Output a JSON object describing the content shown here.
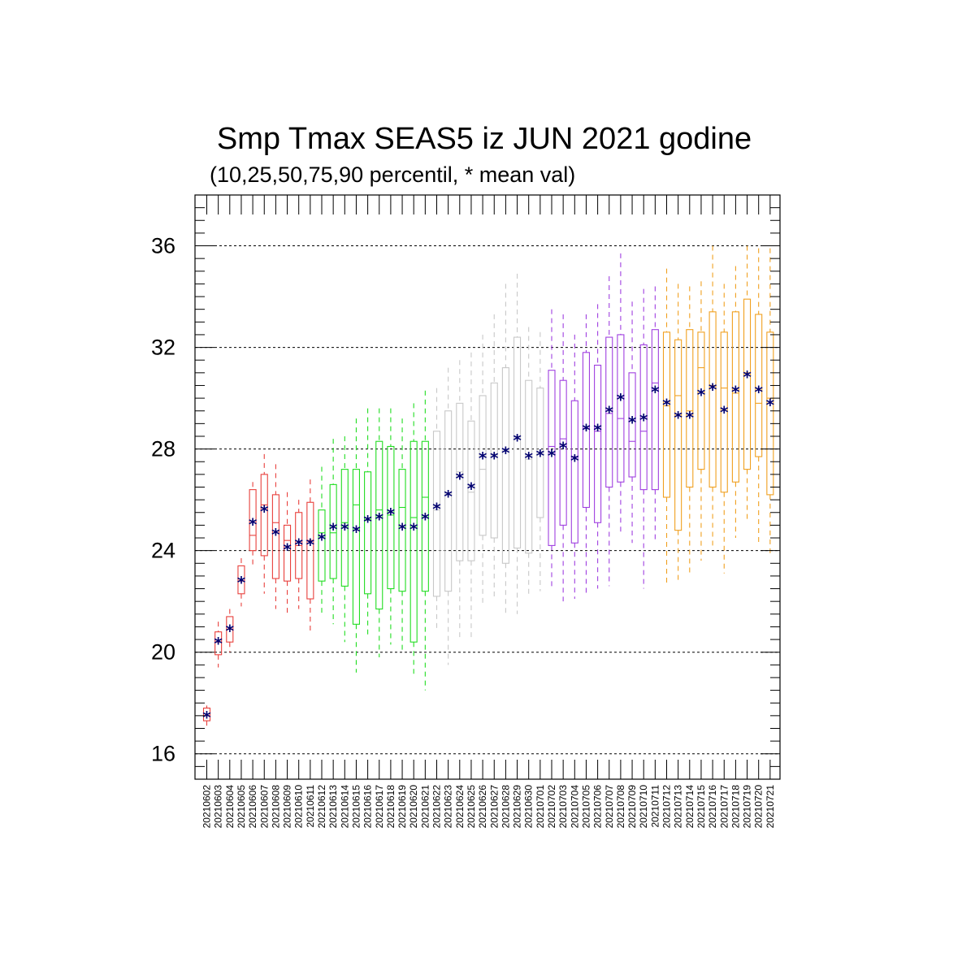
{
  "chart_data": {
    "type": "box",
    "title": "Smp Tmax SEAS5 iz JUN 2021 godine",
    "subtitle": "(10,25,50,75,90 percentil, * mean val)",
    "xlabel": "",
    "ylabel": "",
    "ylim": [
      15,
      38
    ],
    "yticks": [
      16,
      20,
      24,
      28,
      32,
      36
    ],
    "grid": "horizontal dashed at major ticks",
    "colors": {
      "june_early": "#e8403c",
      "june_mid": "#22dd22",
      "june_late": "#c8c8c8",
      "july_early": "#a040e0",
      "july_late": "#f0a020",
      "mean_marker": "#000070"
    },
    "categories": [
      "20210602",
      "20210603",
      "20210604",
      "20210605",
      "20210606",
      "20210607",
      "20210608",
      "20210609",
      "20210610",
      "20210611",
      "20210612",
      "20210613",
      "20210614",
      "20210615",
      "20210616",
      "20210617",
      "20210618",
      "20210619",
      "20210620",
      "20210621",
      "20210622",
      "20210623",
      "20210624",
      "20210625",
      "20210626",
      "20210627",
      "20210628",
      "20210629",
      "20210630",
      "20210701",
      "20210702",
      "20210703",
      "20210704",
      "20210705",
      "20210706",
      "20210707",
      "20210708",
      "20210709",
      "20210710",
      "20210711",
      "20210712",
      "20210713",
      "20210714",
      "20210715",
      "20210716",
      "20210717",
      "20210718",
      "20210719",
      "20210720",
      "20210721"
    ],
    "boxes": [
      {
        "p10": 17.1,
        "p25": 17.3,
        "p50": 17.5,
        "p75": 17.8,
        "p90": 17.9,
        "mean": 17.5,
        "color": "#e8403c"
      },
      {
        "p10": 19.4,
        "p25": 19.9,
        "p50": 20.4,
        "p75": 20.8,
        "p90": 21.2,
        "mean": 20.4,
        "color": "#e8403c"
      },
      {
        "p10": 20.0,
        "p25": 20.4,
        "p50": 20.9,
        "p75": 21.4,
        "p90": 21.7,
        "mean": 20.9,
        "color": "#e8403c"
      },
      {
        "p10": 21.8,
        "p25": 22.3,
        "p50": 22.8,
        "p75": 23.4,
        "p90": 23.7,
        "mean": 22.8,
        "color": "#e8403c"
      },
      {
        "p10": 23.3,
        "p25": 24.0,
        "p50": 24.6,
        "p75": 26.4,
        "p90": 26.7,
        "mean": 25.1,
        "color": "#e8403c"
      },
      {
        "p10": 22.3,
        "p25": 23.8,
        "p50": 25.8,
        "p75": 27.0,
        "p90": 27.8,
        "mean": 25.6,
        "color": "#e8403c"
      },
      {
        "p10": 21.7,
        "p25": 22.9,
        "p50": 25.1,
        "p75": 26.2,
        "p90": 27.4,
        "mean": 24.7,
        "color": "#e8403c"
      },
      {
        "p10": 21.4,
        "p25": 22.8,
        "p50": 24.4,
        "p75": 25.0,
        "p90": 26.3,
        "mean": 24.1,
        "color": "#e8403c"
      },
      {
        "p10": 21.7,
        "p25": 22.9,
        "p50": 24.2,
        "p75": 25.5,
        "p90": 26.0,
        "mean": 24.3,
        "color": "#e8403c"
      },
      {
        "p10": 20.8,
        "p25": 22.1,
        "p50": 24.4,
        "p75": 25.9,
        "p90": 26.8,
        "mean": 24.3,
        "color": "#e8403c"
      },
      {
        "p10": 21.5,
        "p25": 22.8,
        "p50": 24.7,
        "p75": 25.6,
        "p90": 27.3,
        "mean": 24.5,
        "color": "#22dd22"
      },
      {
        "p10": 21.1,
        "p25": 22.9,
        "p50": 24.7,
        "p75": 26.6,
        "p90": 28.4,
        "mean": 24.9,
        "color": "#22dd22"
      },
      {
        "p10": 20.4,
        "p25": 22.6,
        "p50": 25.1,
        "p75": 27.2,
        "p90": 28.5,
        "mean": 24.9,
        "color": "#22dd22"
      },
      {
        "p10": 19.2,
        "p25": 21.1,
        "p50": 25.8,
        "p75": 27.2,
        "p90": 29.2,
        "mean": 24.8,
        "color": "#22dd22"
      },
      {
        "p10": 20.7,
        "p25": 22.3,
        "p50": 25.2,
        "p75": 27.1,
        "p90": 29.6,
        "mean": 25.2,
        "color": "#22dd22"
      },
      {
        "p10": 19.8,
        "p25": 21.7,
        "p50": 25.6,
        "p75": 28.3,
        "p90": 29.6,
        "mean": 25.3,
        "color": "#22dd22"
      },
      {
        "p10": 20.3,
        "p25": 22.5,
        "p50": 25.4,
        "p75": 28.1,
        "p90": 29.6,
        "mean": 25.5,
        "color": "#22dd22"
      },
      {
        "p10": 20.1,
        "p25": 22.4,
        "p50": 25.7,
        "p75": 27.2,
        "p90": 29.2,
        "mean": 24.9,
        "color": "#22dd22"
      },
      {
        "p10": 19.0,
        "p25": 20.4,
        "p50": 25.3,
        "p75": 28.3,
        "p90": 29.8,
        "mean": 24.9,
        "color": "#22dd22"
      },
      {
        "p10": 18.5,
        "p25": 22.4,
        "p50": 26.1,
        "p75": 28.3,
        "p90": 30.3,
        "mean": 25.3,
        "color": "#22dd22"
      },
      {
        "p10": 20.8,
        "p25": 22.2,
        "p50": 25.6,
        "p75": 28.7,
        "p90": 30.4,
        "mean": 25.7,
        "color": "#c8c8c8"
      },
      {
        "p10": 19.5,
        "p25": 22.4,
        "p50": 26.2,
        "p75": 29.5,
        "p90": 31.2,
        "mean": 26.2,
        "color": "#c8c8c8"
      },
      {
        "p10": 20.5,
        "p25": 23.6,
        "p50": 27.1,
        "p75": 29.8,
        "p90": 31.5,
        "mean": 26.9,
        "color": "#c8c8c8"
      },
      {
        "p10": 20.5,
        "p25": 23.6,
        "p50": 26.3,
        "p75": 29.1,
        "p90": 31.8,
        "mean": 26.5,
        "color": "#c8c8c8"
      },
      {
        "p10": 21.9,
        "p25": 24.6,
        "p50": 27.2,
        "p75": 30.1,
        "p90": 32.5,
        "mean": 27.7,
        "color": "#c8c8c8"
      },
      {
        "p10": 22.1,
        "p25": 24.5,
        "p50": 27.8,
        "p75": 30.6,
        "p90": 33.3,
        "mean": 27.7,
        "color": "#c8c8c8"
      },
      {
        "p10": 21.5,
        "p25": 23.5,
        "p50": 28.0,
        "p75": 31.2,
        "p90": 34.5,
        "mean": 27.9,
        "color": "#c8c8c8"
      },
      {
        "p10": 21.5,
        "p25": 24.1,
        "p50": 28.5,
        "p75": 32.4,
        "p90": 34.9,
        "mean": 28.4,
        "color": "#c8c8c8"
      },
      {
        "p10": 22.3,
        "p25": 23.9,
        "p50": 27.6,
        "p75": 30.7,
        "p90": 32.8,
        "mean": 27.7,
        "color": "#c8c8c8"
      },
      {
        "p10": 22.4,
        "p25": 25.3,
        "p50": 27.8,
        "p75": 30.4,
        "p90": 32.6,
        "mean": 27.8,
        "color": "#c8c8c8"
      },
      {
        "p10": 22.5,
        "p25": 24.2,
        "p50": 28.1,
        "p75": 31.1,
        "p90": 33.5,
        "mean": 27.8,
        "color": "#a040e0"
      },
      {
        "p10": 22.0,
        "p25": 25.0,
        "p50": 28.4,
        "p75": 30.7,
        "p90": 33.3,
        "mean": 28.1,
        "color": "#a040e0"
      },
      {
        "p10": 22.1,
        "p25": 24.3,
        "p50": 27.7,
        "p75": 29.9,
        "p90": 32.5,
        "mean": 27.6,
        "color": "#a040e0"
      },
      {
        "p10": 22.2,
        "p25": 25.7,
        "p50": 28.8,
        "p75": 31.8,
        "p90": 33.3,
        "mean": 28.8,
        "color": "#a040e0"
      },
      {
        "p10": 22.5,
        "p25": 25.1,
        "p50": 28.7,
        "p75": 31.3,
        "p90": 33.7,
        "mean": 28.8,
        "color": "#a040e0"
      },
      {
        "p10": 22.6,
        "p25": 26.5,
        "p50": 29.4,
        "p75": 32.4,
        "p90": 34.8,
        "mean": 29.5,
        "color": "#a040e0"
      },
      {
        "p10": 24.6,
        "p25": 26.7,
        "p50": 29.2,
        "p75": 32.5,
        "p90": 35.7,
        "mean": 30.0,
        "color": "#a040e0"
      },
      {
        "p10": 24.3,
        "p25": 26.9,
        "p50": 28.3,
        "p75": 31.0,
        "p90": 33.8,
        "mean": 29.1,
        "color": "#a040e0"
      },
      {
        "p10": 22.5,
        "p25": 26.4,
        "p50": 28.7,
        "p75": 32.1,
        "p90": 34.3,
        "mean": 29.2,
        "color": "#a040e0"
      },
      {
        "p10": 24.3,
        "p25": 26.4,
        "p50": 30.6,
        "p75": 32.7,
        "p90": 34.4,
        "mean": 30.3,
        "color": "#a040e0"
      },
      {
        "p10": 22.6,
        "p25": 26.1,
        "p50": 29.7,
        "p75": 32.6,
        "p90": 35.1,
        "mean": 29.8,
        "color": "#f0a020"
      },
      {
        "p10": 22.8,
        "p25": 24.8,
        "p50": 30.1,
        "p75": 32.3,
        "p90": 34.5,
        "mean": 29.3,
        "color": "#f0a020"
      },
      {
        "p10": 23.0,
        "p25": 26.5,
        "p50": 29.5,
        "p75": 32.7,
        "p90": 34.4,
        "mean": 29.3,
        "color": "#f0a020"
      },
      {
        "p10": 23.6,
        "p25": 27.2,
        "p50": 31.2,
        "p75": 32.6,
        "p90": 34.6,
        "mean": 30.2,
        "color": "#f0a020"
      },
      {
        "p10": 24.2,
        "p25": 26.5,
        "p50": 30.5,
        "p75": 33.4,
        "p90": 36.0,
        "mean": 30.4,
        "color": "#f0a020"
      },
      {
        "p10": 23.1,
        "p25": 26.3,
        "p50": 30.4,
        "p75": 32.6,
        "p90": 34.5,
        "mean": 29.5,
        "color": "#f0a020"
      },
      {
        "p10": 24.5,
        "p25": 26.7,
        "p50": 30.2,
        "p75": 33.4,
        "p90": 35.2,
        "mean": 30.3,
        "color": "#f0a020"
      },
      {
        "p10": 25.2,
        "p25": 27.2,
        "p50": 31.0,
        "p75": 33.9,
        "p90": 36.0,
        "mean": 30.9,
        "color": "#f0a020"
      },
      {
        "p10": 24.2,
        "p25": 27.7,
        "p50": 29.8,
        "p75": 33.3,
        "p90": 35.9,
        "mean": 30.3,
        "color": "#f0a020"
      },
      {
        "p10": 23.9,
        "p25": 26.2,
        "p50": 30.0,
        "p75": 32.6,
        "p90": 35.9,
        "mean": 29.8,
        "color": "#f0a020"
      }
    ]
  }
}
